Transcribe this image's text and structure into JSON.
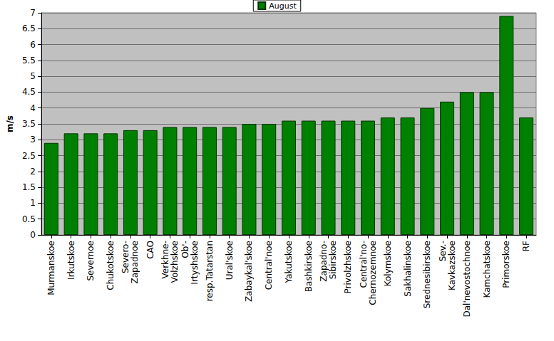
{
  "chart_data": {
    "type": "bar",
    "y_label": "m/s",
    "categories": [
      "Murmanskoe",
      "Irkutskoe",
      "Severnoe",
      "Chukotskoe",
      "Severo-\nZapadnoe",
      "CAO",
      "Verkhne-\nVolzhskoe",
      "Ob'-\nIrtyshskoe",
      "resp.Tatarstan",
      "Ural'skoe",
      "Zabaykal'skoe",
      "Central'noe",
      "Yakutskoe",
      "Bashkirskoe",
      "Zapadno-\nSibirskoe",
      "Privolzhskoe",
      "Central'no-\nChernozemnoe",
      "Kolymskoe",
      "Sakhalinskoe",
      "Srednesibirskoe",
      "Sev.-\nKavkazskoe",
      "Dal'nevostochnoe",
      "Kamchatskoe",
      "Primorskoe",
      "RF"
    ],
    "series": [
      {
        "name": "August",
        "color": "#008000",
        "values": [
          2.9,
          3.2,
          3.2,
          3.2,
          3.3,
          3.3,
          3.4,
          3.4,
          3.4,
          3.4,
          3.5,
          3.5,
          3.6,
          3.6,
          3.6,
          3.6,
          3.6,
          3.7,
          3.7,
          4.0,
          4.2,
          4.5,
          4.5,
          6.9,
          3.7
        ]
      }
    ],
    "ylim": [
      0,
      7
    ],
    "yticks": [
      0,
      0.5,
      1,
      1.5,
      2,
      2.5,
      3,
      3.5,
      4,
      4.5,
      5,
      5.5,
      6,
      6.5,
      7
    ],
    "grid": true,
    "legend": "top"
  }
}
